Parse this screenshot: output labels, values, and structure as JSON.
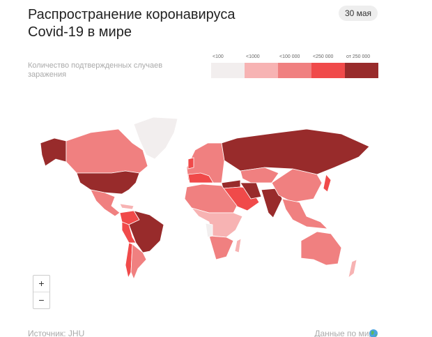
{
  "header": {
    "title": "Распространение коронавируса Covid-19 в мире",
    "date": "30 мая"
  },
  "legend": {
    "label": "Количество подтвержденных случаев заражения",
    "items": [
      {
        "label": "<100",
        "color": "#f2eeee"
      },
      {
        "label": "<1000",
        "color": "#f7b3b3"
      },
      {
        "label": "<100 000",
        "color": "#f08080"
      },
      {
        "label": "<250 000",
        "color": "#f04a4a"
      },
      {
        "label": "от 250 000",
        "color": "#982b2b"
      }
    ]
  },
  "controls": {
    "zoom_in": "+",
    "zoom_out": "−"
  },
  "footer": {
    "source": "Источник: JHU",
    "link": "Данные по миру"
  }
}
